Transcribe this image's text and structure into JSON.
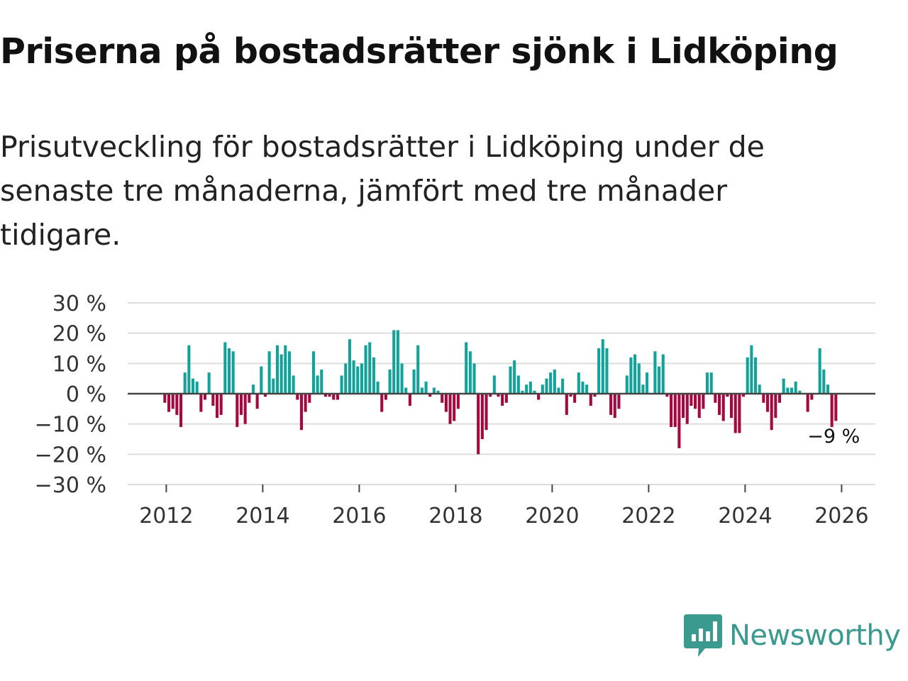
{
  "header": {
    "title": "Priserna på bostadsrätter sjönk i Lidköping",
    "subtitle": "Prisutveckling för bostadsrätter i Lidköping under de senaste tre månaderna, jämfört med tre månader tidigare."
  },
  "colors": {
    "positive": "#11a39a",
    "negative": "#a3093e",
    "grid": "#dddddd",
    "zero_line": "#444444",
    "brand": "#3a9a8f"
  },
  "brand": {
    "name": "Newsworthy",
    "icon": "newsworthy-logo-icon"
  },
  "chart_data": {
    "type": "bar",
    "title": "Priserna på bostadsrätter sjönk i Lidköping",
    "subtitle": "Prisutveckling för bostadsrätter i Lidköping under de senaste tre månaderna, jämfört med tre månader tidigare.",
    "xlabel": "",
    "ylabel": "",
    "x_unit": "year (fractional, monthly)",
    "start": 2011.97,
    "step": 0.0833,
    "xlim": [
      2011.2,
      2026.7
    ],
    "ylim": [
      -30,
      30
    ],
    "grid": true,
    "y_ticks": [
      30,
      20,
      10,
      0,
      -10,
      -20,
      -30
    ],
    "y_tick_labels": [
      "30 %",
      "20 %",
      "10 %",
      "0 %",
      "−10 %",
      "−20 %",
      "−30 %"
    ],
    "x_ticks": [
      2012,
      2014,
      2016,
      2018,
      2020,
      2022,
      2024,
      2026
    ],
    "x_tick_labels": [
      "2012",
      "2014",
      "2016",
      "2018",
      "2020",
      "2022",
      "2024",
      "2026"
    ],
    "end_label": "−9 %",
    "values": [
      -3,
      -6,
      -5,
      -7,
      -11,
      7,
      16,
      5,
      4,
      -6,
      -2,
      7,
      -4,
      -8,
      -7,
      17,
      15,
      14,
      -11,
      -7,
      -10,
      -3,
      3,
      -5,
      9,
      -1,
      14,
      5,
      16,
      13,
      16,
      14,
      6,
      -2,
      -12,
      -6,
      -3,
      14,
      6,
      8,
      -1,
      -1,
      -2,
      -2,
      6,
      10,
      18,
      11,
      9,
      10,
      16,
      17,
      12,
      4,
      -6,
      -2,
      8,
      21,
      21,
      10,
      2,
      -4,
      8,
      16,
      2,
      4,
      -1,
      2,
      1,
      -3,
      -6,
      -10,
      -9,
      -5,
      0,
      17,
      14,
      10,
      -20,
      -15,
      -12,
      -1,
      6,
      -1,
      -4,
      -3,
      9,
      11,
      6,
      1,
      3,
      4,
      1,
      -2,
      3,
      5,
      7,
      8,
      2,
      5,
      -7,
      -1,
      -3,
      7,
      4,
      3,
      -4,
      -1,
      15,
      18,
      15,
      -7,
      -8,
      -5,
      0,
      6,
      12,
      13,
      10,
      3,
      7,
      0,
      14,
      9,
      13,
      -1,
      -11,
      -11,
      -18,
      -8,
      -10,
      -4,
      -5,
      -8,
      -5,
      7,
      7,
      -3,
      -7,
      -9,
      -1,
      -8,
      -13,
      -13,
      -1,
      12,
      16,
      12,
      3,
      -3,
      -6,
      -12,
      -8,
      -3,
      5,
      2,
      2,
      4,
      1,
      0,
      -6,
      -2,
      0,
      15,
      8,
      3,
      -11,
      -9
    ]
  }
}
